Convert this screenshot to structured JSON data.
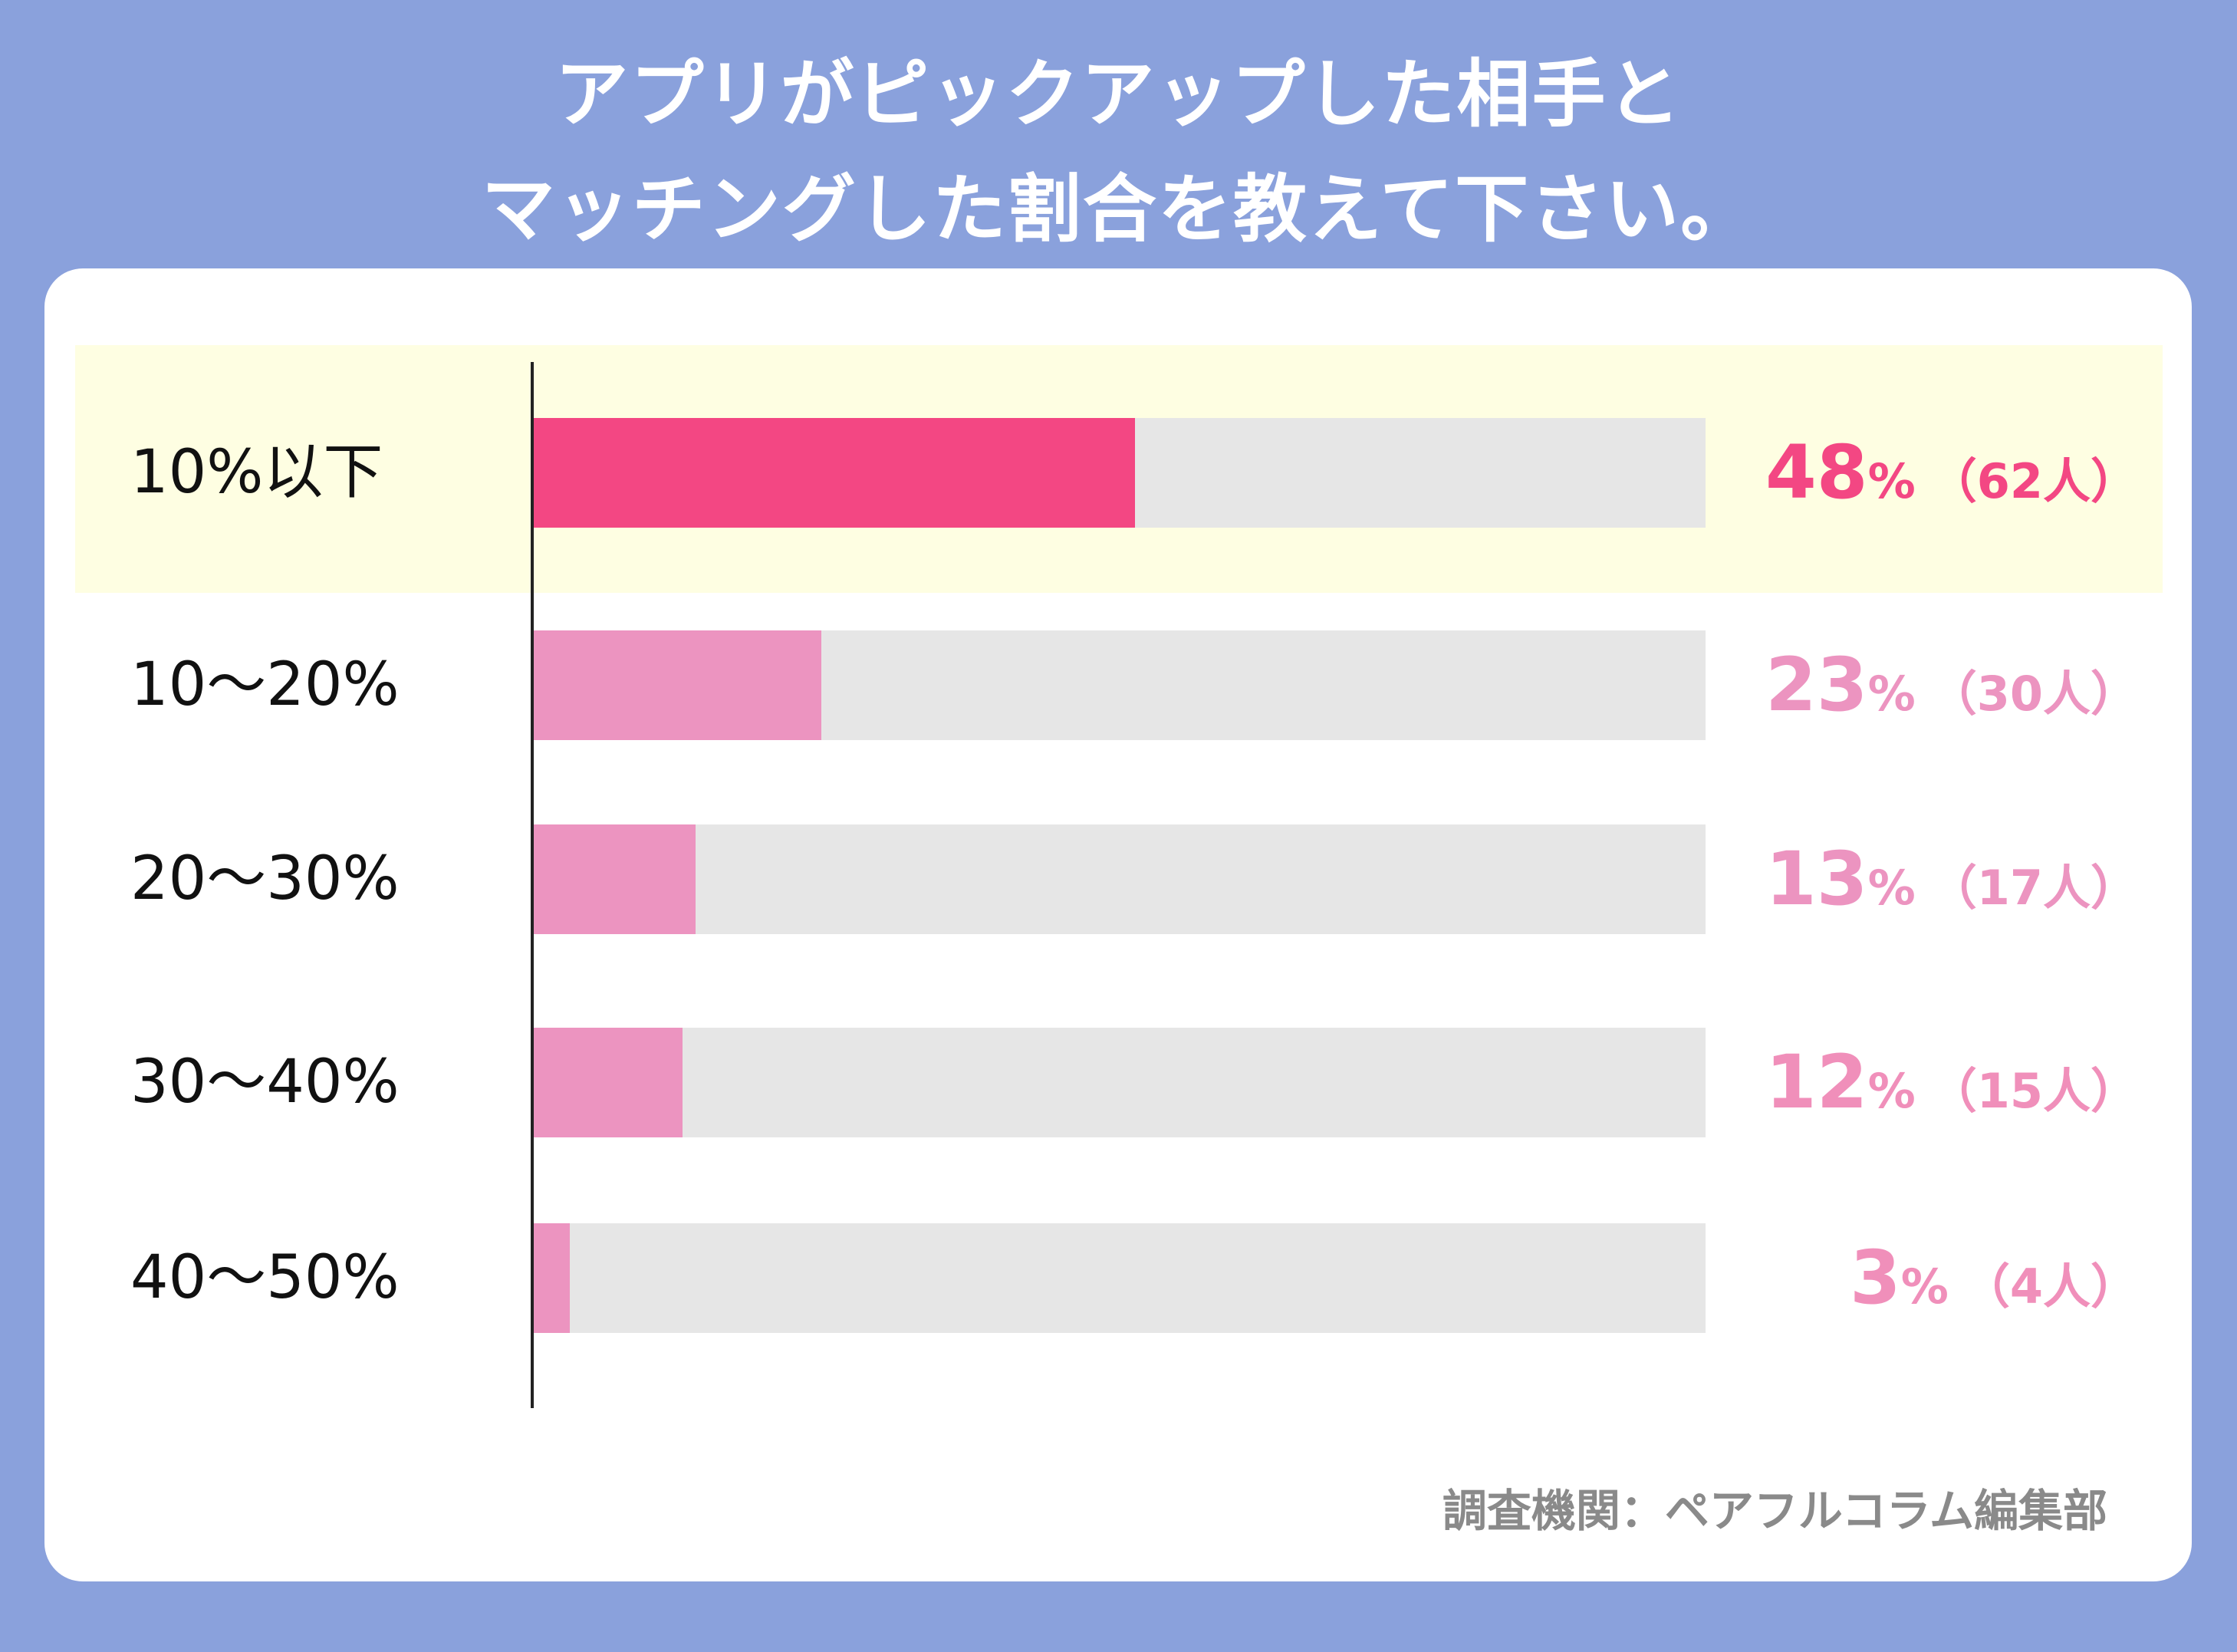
{
  "title_lines": [
    "アプリがピックアップした相手と",
    "マッチングした割合を教えて下さい。"
  ],
  "source": "調査機関：ペアフルコラム編集部",
  "colors": {
    "background": "#8aa1dc",
    "highlight_row": "#fefee2",
    "primary_bar": "#f34783",
    "secondary_bar": "#ec94c0",
    "track": "#e6e6e6"
  },
  "chart_data": {
    "type": "bar",
    "orientation": "horizontal",
    "xlim": [
      0,
      100
    ],
    "categories": [
      "10%以下",
      "10〜20%",
      "20〜30%",
      "30〜40%",
      "40〜50%"
    ],
    "values": [
      48,
      23,
      13,
      12,
      3
    ],
    "counts": [
      "（62人）",
      "（30人）",
      "（17人）",
      "（15人）",
      "（4人）"
    ],
    "percent_sign": "%",
    "highlighted_index": 0
  }
}
